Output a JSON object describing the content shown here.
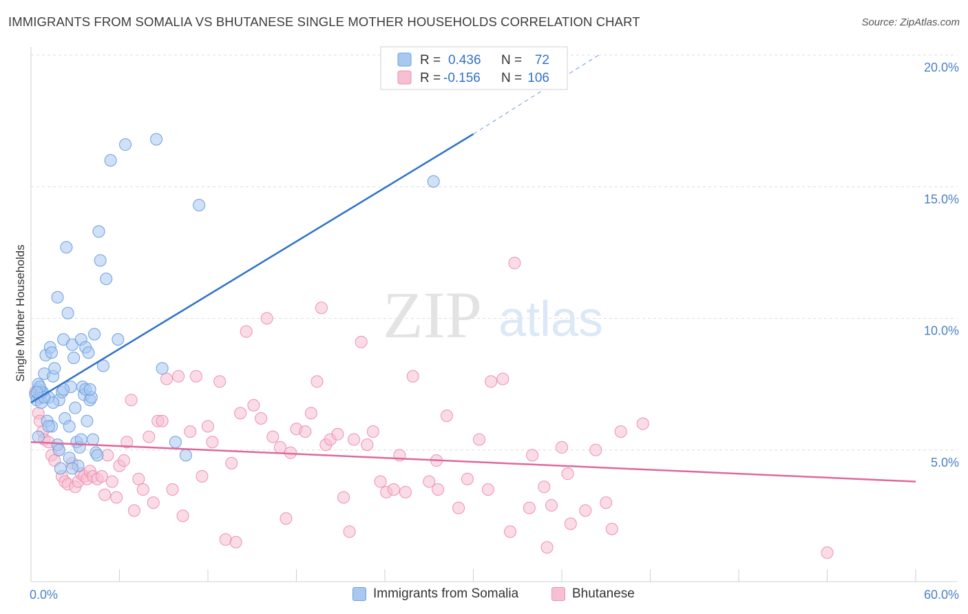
{
  "title": "IMMIGRANTS FROM SOMALIA VS BHUTANESE SINGLE MOTHER HOUSEHOLDS CORRELATION CHART",
  "source": "Source: ZipAtlas.com",
  "watermark": {
    "zip": "ZIP",
    "atlas": "atlas"
  },
  "colors": {
    "blue_fill": "#a9c8f0",
    "blue_stroke": "#6a9ee0",
    "blue_line": "#2f72c9",
    "pink_fill": "#f6bfd2",
    "pink_stroke": "#ee8fb0",
    "pink_line": "#e0679a",
    "axis_label": "#4a7fc9",
    "grid": "#dcdcdc"
  },
  "legend": {
    "rows": [
      {
        "r_label": "R =",
        "r_value": "0.436",
        "n_label": "N =",
        "n_value": "72"
      },
      {
        "r_label": "R =",
        "r_value": "-0.156",
        "n_label": "N =",
        "n_value": "106"
      }
    ]
  },
  "bottom_legend": [
    "Immigrants from Somalia",
    "Bhutanese"
  ],
  "chart_data": {
    "type": "scatter",
    "title": "IMMIGRANTS FROM SOMALIA VS BHUTANESE SINGLE MOTHER HOUSEHOLDS CORRELATION CHART",
    "xlabel": "",
    "ylabel": "Single Mother Households",
    "xlim": [
      0,
      60
    ],
    "ylim": [
      0,
      20
    ],
    "x_tick_labels": [
      "0.0%",
      "60.0%"
    ],
    "y_ticks": [
      5,
      10,
      15,
      20
    ],
    "y_tick_labels": [
      "5.0%",
      "10.0%",
      "15.0%",
      "20.0%"
    ],
    "grid": true,
    "legend_position": "top-center",
    "series": [
      {
        "name": "Immigrants from Somalia",
        "R": 0.436,
        "N": 72,
        "trend": {
          "x": [
            0,
            30
          ],
          "y": [
            6.8,
            17.0
          ],
          "dashed_to": [
            38.5,
            20.0
          ]
        },
        "points": [
          [
            0.3,
            7.1
          ],
          [
            0.4,
            6.9
          ],
          [
            0.5,
            7.3
          ],
          [
            0.6,
            7.0
          ],
          [
            0.7,
            6.8
          ],
          [
            0.8,
            7.2
          ],
          [
            0.5,
            7.5
          ],
          [
            0.9,
            7.9
          ],
          [
            1.0,
            8.6
          ],
          [
            1.1,
            6.1
          ],
          [
            1.2,
            7.0
          ],
          [
            1.3,
            8.9
          ],
          [
            1.4,
            8.7
          ],
          [
            1.5,
            7.8
          ],
          [
            1.6,
            8.1
          ],
          [
            1.8,
            10.8
          ],
          [
            1.4,
            5.9
          ],
          [
            1.9,
            6.9
          ],
          [
            2.0,
            4.3
          ],
          [
            2.1,
            7.2
          ],
          [
            2.2,
            9.2
          ],
          [
            2.3,
            6.2
          ],
          [
            2.4,
            12.7
          ],
          [
            2.5,
            10.2
          ],
          [
            2.6,
            4.7
          ],
          [
            2.7,
            7.4
          ],
          [
            2.8,
            9.0
          ],
          [
            2.9,
            8.5
          ],
          [
            3.0,
            6.6
          ],
          [
            3.1,
            5.3
          ],
          [
            3.2,
            4.4
          ],
          [
            3.3,
            5.1
          ],
          [
            3.4,
            9.2
          ],
          [
            3.5,
            7.4
          ],
          [
            3.6,
            7.1
          ],
          [
            3.7,
            8.9
          ],
          [
            3.8,
            6.1
          ],
          [
            3.9,
            8.7
          ],
          [
            4.0,
            6.9
          ],
          [
            4.1,
            7.0
          ],
          [
            4.2,
            5.4
          ],
          [
            4.3,
            9.4
          ],
          [
            4.4,
            4.9
          ],
          [
            4.5,
            4.8
          ],
          [
            4.6,
            13.3
          ],
          [
            4.7,
            12.2
          ],
          [
            4.9,
            8.2
          ],
          [
            5.1,
            11.5
          ],
          [
            5.4,
            16.0
          ],
          [
            5.9,
            9.2
          ],
          [
            6.4,
            16.6
          ],
          [
            8.5,
            16.8
          ],
          [
            8.9,
            8.1
          ],
          [
            9.8,
            5.3
          ],
          [
            10.5,
            4.8
          ],
          [
            11.4,
            14.3
          ],
          [
            27.3,
            15.2
          ],
          [
            0.5,
            5.5
          ],
          [
            1.8,
            5.2
          ],
          [
            3.4,
            5.4
          ],
          [
            2.8,
            4.3
          ],
          [
            1.9,
            5.0
          ],
          [
            0.7,
            7.2
          ],
          [
            0.6,
            7.4
          ],
          [
            1.5,
            6.8
          ],
          [
            2.2,
            7.3
          ],
          [
            3.7,
            7.3
          ],
          [
            4.0,
            7.3
          ],
          [
            2.6,
            5.9
          ],
          [
            1.2,
            5.9
          ],
          [
            0.9,
            7.0
          ],
          [
            0.4,
            7.2
          ]
        ]
      },
      {
        "name": "Bhutanese",
        "R": -0.156,
        "N": 106,
        "trend": {
          "x": [
            0,
            60
          ],
          "y": [
            5.3,
            3.8
          ]
        },
        "points": [
          [
            0.3,
            7.2
          ],
          [
            0.5,
            6.4
          ],
          [
            0.6,
            6.1
          ],
          [
            0.8,
            5.7
          ],
          [
            0.9,
            5.4
          ],
          [
            1.2,
            5.3
          ],
          [
            1.4,
            4.8
          ],
          [
            1.6,
            4.6
          ],
          [
            1.9,
            5.0
          ],
          [
            2.1,
            4.0
          ],
          [
            2.3,
            3.8
          ],
          [
            2.5,
            3.7
          ],
          [
            2.8,
            4.5
          ],
          [
            3.0,
            3.6
          ],
          [
            3.2,
            3.8
          ],
          [
            3.4,
            4.1
          ],
          [
            3.6,
            4.0
          ],
          [
            3.8,
            3.9
          ],
          [
            4.0,
            4.2
          ],
          [
            4.2,
            4.0
          ],
          [
            4.5,
            3.9
          ],
          [
            4.8,
            4.0
          ],
          [
            5.0,
            3.3
          ],
          [
            5.2,
            4.8
          ],
          [
            5.5,
            3.8
          ],
          [
            5.8,
            3.2
          ],
          [
            6.0,
            4.4
          ],
          [
            6.3,
            4.6
          ],
          [
            6.5,
            5.3
          ],
          [
            6.8,
            6.9
          ],
          [
            7.0,
            2.7
          ],
          [
            7.3,
            3.9
          ],
          [
            7.6,
            3.5
          ],
          [
            8.0,
            5.5
          ],
          [
            8.3,
            3.0
          ],
          [
            8.6,
            6.1
          ],
          [
            8.9,
            6.1
          ],
          [
            9.2,
            7.7
          ],
          [
            9.6,
            3.5
          ],
          [
            10.0,
            7.8
          ],
          [
            10.3,
            2.5
          ],
          [
            10.8,
            5.7
          ],
          [
            11.2,
            7.8
          ],
          [
            11.6,
            4.0
          ],
          [
            12.0,
            5.9
          ],
          [
            12.3,
            5.3
          ],
          [
            12.8,
            7.6
          ],
          [
            13.2,
            1.6
          ],
          [
            13.6,
            4.5
          ],
          [
            13.9,
            1.5
          ],
          [
            14.2,
            6.4
          ],
          [
            14.6,
            9.5
          ],
          [
            15.1,
            6.7
          ],
          [
            15.6,
            6.2
          ],
          [
            16.0,
            10.0
          ],
          [
            16.4,
            5.5
          ],
          [
            16.9,
            5.1
          ],
          [
            17.3,
            2.4
          ],
          [
            17.6,
            4.9
          ],
          [
            18.0,
            5.8
          ],
          [
            18.6,
            5.7
          ],
          [
            19.0,
            6.4
          ],
          [
            19.4,
            7.6
          ],
          [
            19.7,
            10.4
          ],
          [
            20.0,
            5.2
          ],
          [
            20.3,
            5.4
          ],
          [
            20.8,
            5.6
          ],
          [
            21.2,
            3.2
          ],
          [
            21.6,
            1.9
          ],
          [
            21.9,
            5.4
          ],
          [
            22.4,
            9.1
          ],
          [
            22.8,
            5.2
          ],
          [
            23.2,
            5.7
          ],
          [
            23.7,
            3.8
          ],
          [
            24.1,
            3.4
          ],
          [
            24.6,
            3.5
          ],
          [
            25.0,
            4.8
          ],
          [
            25.4,
            3.4
          ],
          [
            25.9,
            7.8
          ],
          [
            27.0,
            3.8
          ],
          [
            27.5,
            4.6
          ],
          [
            27.6,
            3.5
          ],
          [
            28.2,
            6.3
          ],
          [
            29.0,
            2.8
          ],
          [
            29.6,
            3.9
          ],
          [
            30.4,
            5.4
          ],
          [
            31.0,
            3.5
          ],
          [
            31.2,
            7.6
          ],
          [
            32.0,
            7.7
          ],
          [
            32.5,
            1.9
          ],
          [
            32.8,
            12.1
          ],
          [
            33.8,
            2.8
          ],
          [
            34.0,
            4.8
          ],
          [
            34.8,
            3.6
          ],
          [
            35.0,
            1.3
          ],
          [
            35.3,
            2.9
          ],
          [
            36.0,
            5.1
          ],
          [
            36.4,
            4.1
          ],
          [
            36.6,
            2.2
          ],
          [
            37.6,
            2.7
          ],
          [
            38.3,
            5.0
          ],
          [
            39.0,
            3.0
          ],
          [
            39.4,
            2.0
          ],
          [
            40.0,
            5.7
          ],
          [
            41.5,
            6.0
          ],
          [
            54.0,
            1.1
          ]
        ]
      }
    ]
  }
}
